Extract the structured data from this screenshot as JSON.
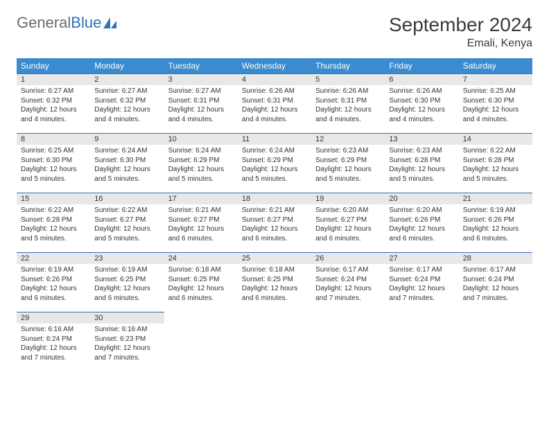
{
  "logo": {
    "part1": "General",
    "part2": "Blue"
  },
  "title": "September 2024",
  "location": "Emali, Kenya",
  "header_bg": "#3b8bd0",
  "header_fg": "#ffffff",
  "daynum_bg": "#e8e8e8",
  "daynum_border": "#2f72b8",
  "weekdays": [
    "Sunday",
    "Monday",
    "Tuesday",
    "Wednesday",
    "Thursday",
    "Friday",
    "Saturday"
  ],
  "weeks": [
    [
      {
        "n": "1",
        "sunrise": "Sunrise: 6:27 AM",
        "sunset": "Sunset: 6:32 PM",
        "daylight": "Daylight: 12 hours and 4 minutes."
      },
      {
        "n": "2",
        "sunrise": "Sunrise: 6:27 AM",
        "sunset": "Sunset: 6:32 PM",
        "daylight": "Daylight: 12 hours and 4 minutes."
      },
      {
        "n": "3",
        "sunrise": "Sunrise: 6:27 AM",
        "sunset": "Sunset: 6:31 PM",
        "daylight": "Daylight: 12 hours and 4 minutes."
      },
      {
        "n": "4",
        "sunrise": "Sunrise: 6:26 AM",
        "sunset": "Sunset: 6:31 PM",
        "daylight": "Daylight: 12 hours and 4 minutes."
      },
      {
        "n": "5",
        "sunrise": "Sunrise: 6:26 AM",
        "sunset": "Sunset: 6:31 PM",
        "daylight": "Daylight: 12 hours and 4 minutes."
      },
      {
        "n": "6",
        "sunrise": "Sunrise: 6:26 AM",
        "sunset": "Sunset: 6:30 PM",
        "daylight": "Daylight: 12 hours and 4 minutes."
      },
      {
        "n": "7",
        "sunrise": "Sunrise: 6:25 AM",
        "sunset": "Sunset: 6:30 PM",
        "daylight": "Daylight: 12 hours and 4 minutes."
      }
    ],
    [
      {
        "n": "8",
        "sunrise": "Sunrise: 6:25 AM",
        "sunset": "Sunset: 6:30 PM",
        "daylight": "Daylight: 12 hours and 5 minutes."
      },
      {
        "n": "9",
        "sunrise": "Sunrise: 6:24 AM",
        "sunset": "Sunset: 6:30 PM",
        "daylight": "Daylight: 12 hours and 5 minutes."
      },
      {
        "n": "10",
        "sunrise": "Sunrise: 6:24 AM",
        "sunset": "Sunset: 6:29 PM",
        "daylight": "Daylight: 12 hours and 5 minutes."
      },
      {
        "n": "11",
        "sunrise": "Sunrise: 6:24 AM",
        "sunset": "Sunset: 6:29 PM",
        "daylight": "Daylight: 12 hours and 5 minutes."
      },
      {
        "n": "12",
        "sunrise": "Sunrise: 6:23 AM",
        "sunset": "Sunset: 6:29 PM",
        "daylight": "Daylight: 12 hours and 5 minutes."
      },
      {
        "n": "13",
        "sunrise": "Sunrise: 6:23 AM",
        "sunset": "Sunset: 6:28 PM",
        "daylight": "Daylight: 12 hours and 5 minutes."
      },
      {
        "n": "14",
        "sunrise": "Sunrise: 6:22 AM",
        "sunset": "Sunset: 6:28 PM",
        "daylight": "Daylight: 12 hours and 5 minutes."
      }
    ],
    [
      {
        "n": "15",
        "sunrise": "Sunrise: 6:22 AM",
        "sunset": "Sunset: 6:28 PM",
        "daylight": "Daylight: 12 hours and 5 minutes."
      },
      {
        "n": "16",
        "sunrise": "Sunrise: 6:22 AM",
        "sunset": "Sunset: 6:27 PM",
        "daylight": "Daylight: 12 hours and 5 minutes."
      },
      {
        "n": "17",
        "sunrise": "Sunrise: 6:21 AM",
        "sunset": "Sunset: 6:27 PM",
        "daylight": "Daylight: 12 hours and 6 minutes."
      },
      {
        "n": "18",
        "sunrise": "Sunrise: 6:21 AM",
        "sunset": "Sunset: 6:27 PM",
        "daylight": "Daylight: 12 hours and 6 minutes."
      },
      {
        "n": "19",
        "sunrise": "Sunrise: 6:20 AM",
        "sunset": "Sunset: 6:27 PM",
        "daylight": "Daylight: 12 hours and 6 minutes."
      },
      {
        "n": "20",
        "sunrise": "Sunrise: 6:20 AM",
        "sunset": "Sunset: 6:26 PM",
        "daylight": "Daylight: 12 hours and 6 minutes."
      },
      {
        "n": "21",
        "sunrise": "Sunrise: 6:19 AM",
        "sunset": "Sunset: 6:26 PM",
        "daylight": "Daylight: 12 hours and 6 minutes."
      }
    ],
    [
      {
        "n": "22",
        "sunrise": "Sunrise: 6:19 AM",
        "sunset": "Sunset: 6:26 PM",
        "daylight": "Daylight: 12 hours and 6 minutes."
      },
      {
        "n": "23",
        "sunrise": "Sunrise: 6:19 AM",
        "sunset": "Sunset: 6:25 PM",
        "daylight": "Daylight: 12 hours and 6 minutes."
      },
      {
        "n": "24",
        "sunrise": "Sunrise: 6:18 AM",
        "sunset": "Sunset: 6:25 PM",
        "daylight": "Daylight: 12 hours and 6 minutes."
      },
      {
        "n": "25",
        "sunrise": "Sunrise: 6:18 AM",
        "sunset": "Sunset: 6:25 PM",
        "daylight": "Daylight: 12 hours and 6 minutes."
      },
      {
        "n": "26",
        "sunrise": "Sunrise: 6:17 AM",
        "sunset": "Sunset: 6:24 PM",
        "daylight": "Daylight: 12 hours and 7 minutes."
      },
      {
        "n": "27",
        "sunrise": "Sunrise: 6:17 AM",
        "sunset": "Sunset: 6:24 PM",
        "daylight": "Daylight: 12 hours and 7 minutes."
      },
      {
        "n": "28",
        "sunrise": "Sunrise: 6:17 AM",
        "sunset": "Sunset: 6:24 PM",
        "daylight": "Daylight: 12 hours and 7 minutes."
      }
    ],
    [
      {
        "n": "29",
        "sunrise": "Sunrise: 6:16 AM",
        "sunset": "Sunset: 6:24 PM",
        "daylight": "Daylight: 12 hours and 7 minutes."
      },
      {
        "n": "30",
        "sunrise": "Sunrise: 6:16 AM",
        "sunset": "Sunset: 6:23 PM",
        "daylight": "Daylight: 12 hours and 7 minutes."
      },
      null,
      null,
      null,
      null,
      null
    ]
  ]
}
